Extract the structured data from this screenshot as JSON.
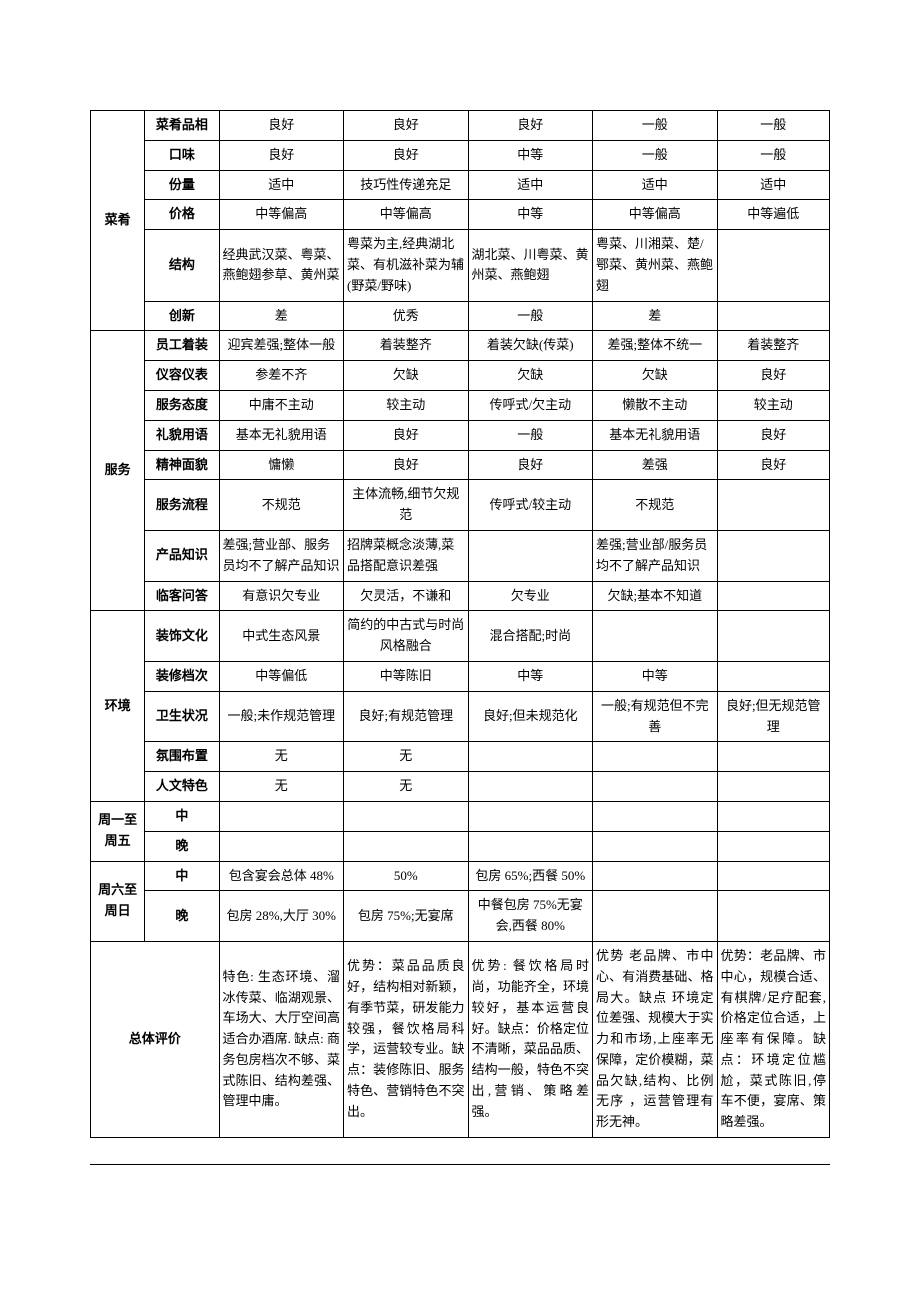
{
  "sections": [
    {
      "name": "菜肴",
      "rowspan": 6,
      "rows": [
        {
          "sub": "菜肴品相",
          "cells": [
            "良好",
            "良好",
            "良好",
            "一般",
            "一般"
          ]
        },
        {
          "sub": "口味",
          "cells": [
            "良好",
            "良好",
            "中等",
            "一般",
            "一般"
          ]
        },
        {
          "sub": "份量",
          "cells": [
            "适中",
            "技巧性传递充足",
            "适中",
            "适中",
            "适中"
          ]
        },
        {
          "sub": "价格",
          "cells": [
            "中等偏高",
            "中等偏高",
            "中等",
            "中等偏高",
            "中等遍低"
          ]
        },
        {
          "sub": "结构",
          "cells": [
            "经典武汉菜、粤菜、燕鲍翅参草、黄州菜",
            "粤菜为主,经典湖北菜、有机滋补菜为辅(野菜/野味)",
            "湖北菜、川粤菜、黄州菜、燕鲍翅",
            "粤菜、川湘菜、楚/鄂菜、黄州菜、燕鲍翅",
            ""
          ],
          "align": [
            "left",
            "left",
            "left",
            "left",
            ""
          ]
        },
        {
          "sub": "创新",
          "cells": [
            "差",
            "优秀",
            "一般",
            "差",
            ""
          ]
        }
      ]
    },
    {
      "name": "服务",
      "rowspan": 8,
      "rows": [
        {
          "sub": "员工着装",
          "cells": [
            "迎宾差强;整体一般",
            "着装整齐",
            "着装欠缺(传菜)",
            "差强;整体不统一",
            "着装整齐"
          ]
        },
        {
          "sub": "仪容仪表",
          "cells": [
            "参差不齐",
            "欠缺",
            "欠缺",
            "欠缺",
            "良好"
          ]
        },
        {
          "sub": "服务态度",
          "cells": [
            "中庸不主动",
            "较主动",
            "传呼式/欠主动",
            "懒散不主动",
            "较主动"
          ]
        },
        {
          "sub": "礼貌用语",
          "cells": [
            "基本无礼貌用语",
            "良好",
            "一般",
            "基本无礼貌用语",
            "良好"
          ]
        },
        {
          "sub": "精神面貌",
          "cells": [
            "慵懒",
            "良好",
            "良好",
            "差强",
            "良好"
          ]
        },
        {
          "sub": "服务流程",
          "cells": [
            "不规范",
            "主体流畅,细节欠规范",
            "传呼式/较主动",
            "不规范",
            ""
          ]
        },
        {
          "sub": "产品知识",
          "cells": [
            "差强;营业部、服务员均不了解产品知识",
            "招牌菜概念淡薄,菜品搭配意识差强",
            "",
            "差强;营业部/服务员均不了解产品知识",
            ""
          ],
          "align": [
            "left",
            "left",
            "",
            "left",
            ""
          ]
        },
        {
          "sub": "临客问答",
          "cells": [
            "有意识欠专业",
            "欠灵活，不谦和",
            "欠专业",
            "欠缺;基本不知道",
            ""
          ]
        }
      ]
    },
    {
      "name": "环境",
      "rowspan": 5,
      "rows": [
        {
          "sub": "装饰文化",
          "cells": [
            "中式生态风景",
            "简约的中古式与时尚风格融合",
            "混合搭配;时尚",
            "",
            ""
          ]
        },
        {
          "sub": "装修档次",
          "cells": [
            "中等偏低",
            "中等陈旧",
            "中等",
            "中等",
            ""
          ]
        },
        {
          "sub": "卫生状况",
          "cells": [
            "一般;未作规范管理",
            "良好;有规范管理",
            "良好;但未规范化",
            "一般;有规范但不完善",
            "良好;但无规范管理"
          ]
        },
        {
          "sub": "氛围布置",
          "cells": [
            "无",
            "无",
            "",
            "",
            ""
          ]
        },
        {
          "sub": "人文特色",
          "cells": [
            "无",
            "无",
            "",
            "",
            ""
          ]
        }
      ]
    }
  ],
  "weekday": {
    "name": "周一至周五",
    "rows": [
      {
        "sub": "中",
        "cells": [
          "",
          "",
          "",
          "",
          ""
        ]
      },
      {
        "sub": "晚",
        "cells": [
          "",
          "",
          "",
          "",
          ""
        ]
      }
    ]
  },
  "weekend": {
    "name": "周六至周日",
    "rows": [
      {
        "sub": "中",
        "cells": [
          "包含宴会总体 48%",
          "50%",
          "包房 65%;西餐 50%",
          "",
          ""
        ]
      },
      {
        "sub": "晚",
        "cells": [
          "包房 28%,大厅 30%",
          "包房 75%;无宴席",
          "中餐包房 75%无宴会,西餐 80%",
          "",
          ""
        ]
      }
    ]
  },
  "summary": {
    "name": "总体评价",
    "cells": [
      "特色: 生态环境、溜冰传菜、临湖观景、车场大、大厅空间高适合办酒席.           缺点: 商务包房档次不够、菜式陈旧、结构差强、管理中庸。",
      "优势：菜品品质良好，结构相对新颖，有季节菜，研发能力较强，餐饮格局科学，运营较专业。缺点：装修陈旧、服务特色、营销特色不突出。",
      "优势: 餐饮格局时尚，功能齐全，环境较好，基本运营良好。缺点：价格定位不清晰，菜品品质、结构一般，特色不突出,营销、策略差强。",
      "优势 老品牌、市中心、有消费基础、格局大。缺点 环境定位差强、规模大于实力和市场,上座率无保障，定价模糊，菜品欠缺,结构、比例无序 ，运营管理有形无神。",
      "优势：老品牌、市中心，规模合适、有棋牌/足疗配套,价格定位合适，上座率有保障。缺点：环境定位尴尬，菜式陈旧,停车不便，宴席、策略差强。"
    ]
  }
}
